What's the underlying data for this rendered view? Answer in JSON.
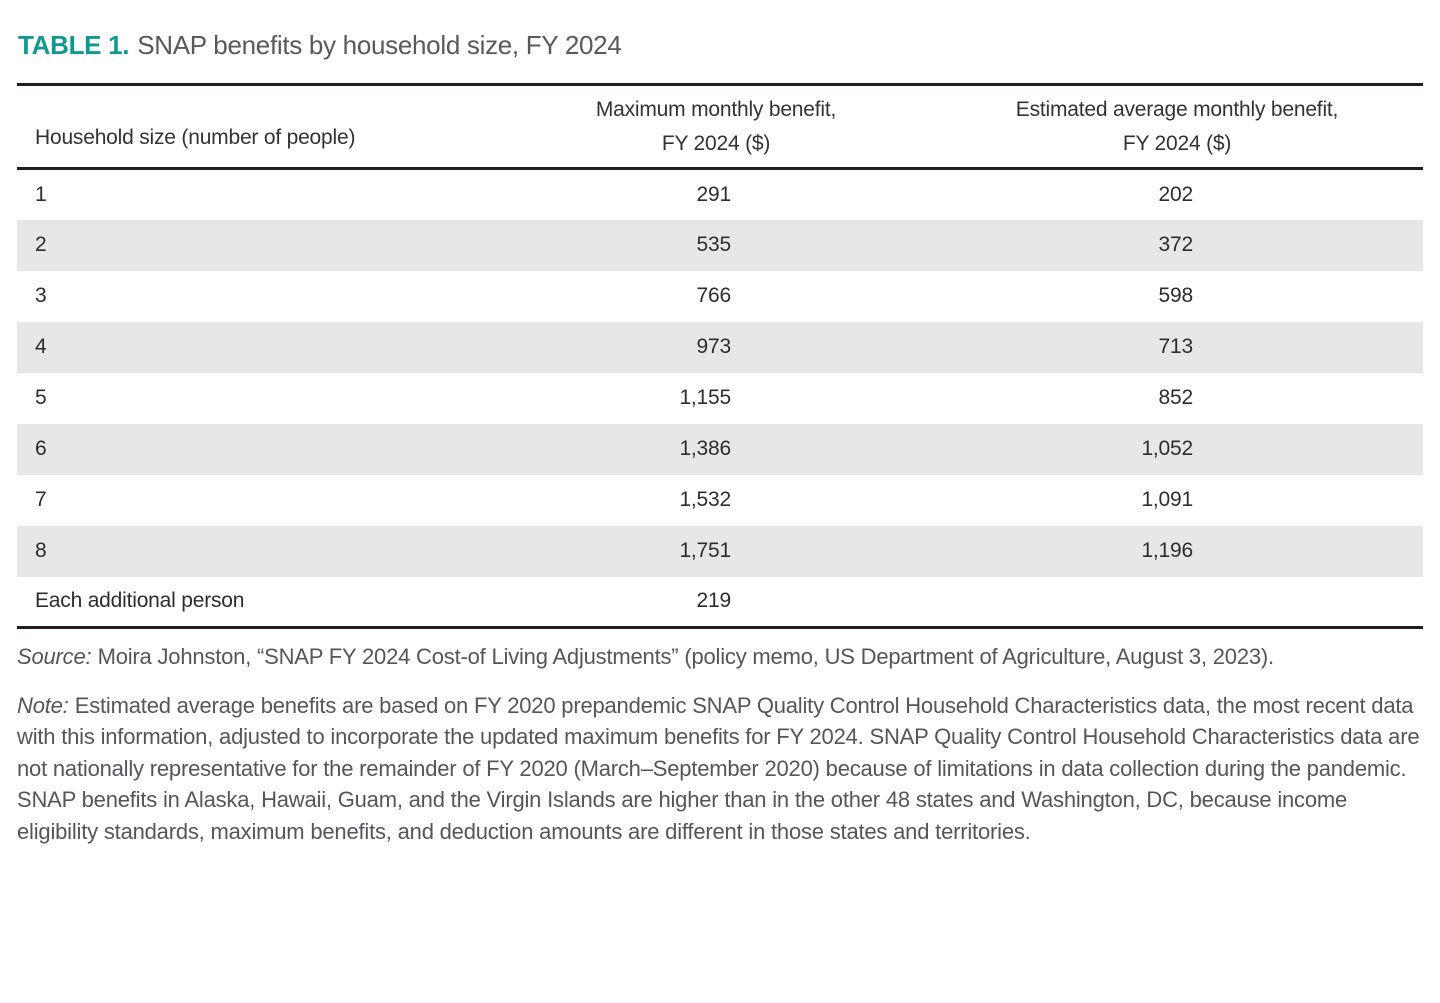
{
  "title": {
    "label": "TABLE 1.",
    "text": "SNAP benefits by household size, FY 2024"
  },
  "table": {
    "columns": [
      {
        "line1": "Household size (number of people)",
        "line2": ""
      },
      {
        "line1": "Maximum monthly benefit,",
        "line2": "FY 2024 ($)"
      },
      {
        "line1": "Estimated average monthly benefit,",
        "line2": "FY 2024 ($)"
      }
    ],
    "rows": [
      [
        "1",
        "291",
        "202"
      ],
      [
        "2",
        "535",
        "372"
      ],
      [
        "3",
        "766",
        "598"
      ],
      [
        "4",
        "973",
        "713"
      ],
      [
        "5",
        "1,155",
        "852"
      ],
      [
        "6",
        "1,386",
        "1,052"
      ],
      [
        "7",
        "1,532",
        "1,091"
      ],
      [
        "8",
        "1,751",
        "1,196"
      ],
      [
        "Each additional person",
        "219",
        ""
      ]
    ]
  },
  "source": {
    "label": "Source:",
    "text": "Moira Johnston, “SNAP FY 2024 Cost-of Living Adjustments” (policy memo, US Department of Agriculture, August 3, 2023)."
  },
  "note": {
    "label": "Note:",
    "text": "Estimated average benefits are based on FY 2020 prepandemic SNAP Quality Control Household Characteristics data, the most recent data with this information, adjusted to incorporate the updated maximum benefits for FY 2024. SNAP Quality Control Household Characteristics data are not nationally representative for the remainder of FY 2020 (March–September 2020) because of limitations in data collection during the pandemic. SNAP benefits in Alaska, Hawaii, Guam, and the Virgin Islands are higher than in the other 48 states and Washington, DC, because income eligibility standards, maximum benefits, and deduction amounts are different in those states and territories."
  },
  "colors": {
    "accent_teal": "#0f9a8f",
    "row_stripe": "#e7e7e7",
    "rule": "#231f20",
    "title_gray": "#58595b",
    "body_text": "#2d2d2d",
    "footnote_gray": "#55565a"
  },
  "chart_data": {
    "type": "table",
    "title": "TABLE 1. SNAP benefits by household size, FY 2024",
    "categories": [
      "1",
      "2",
      "3",
      "4",
      "5",
      "6",
      "7",
      "8",
      "Each additional person"
    ],
    "series": [
      {
        "name": "Maximum monthly benefit, FY 2024 ($)",
        "values": [
          291,
          535,
          766,
          973,
          1155,
          1386,
          1532,
          1751,
          219
        ]
      },
      {
        "name": "Estimated average monthly benefit, FY 2024 ($)",
        "values": [
          202,
          372,
          598,
          713,
          852,
          1052,
          1091,
          1196,
          null
        ]
      }
    ]
  }
}
